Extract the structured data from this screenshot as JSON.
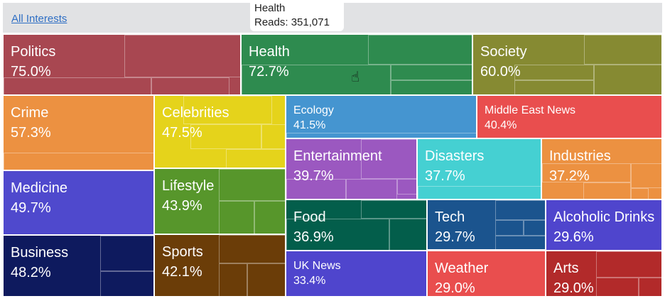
{
  "breadcrumb": {
    "label": "All Interests"
  },
  "tooltip": {
    "title": "Health",
    "reads_label": "Reads:",
    "reads_value": "351,071"
  },
  "tiles": [
    {
      "name": "Politics",
      "pct": "75.0%",
      "color": "#a84751"
    },
    {
      "name": "Health",
      "pct": "72.7%",
      "color": "#2e8b4f"
    },
    {
      "name": "Society",
      "pct": "60.0%",
      "color": "#868a32"
    },
    {
      "name": "Crime",
      "pct": "57.3%",
      "color": "#ec9141"
    },
    {
      "name": "Medicine",
      "pct": "49.7%",
      "color": "#4f49cd"
    },
    {
      "name": "Business",
      "pct": "48.2%",
      "color": "#0e1a5e"
    },
    {
      "name": "Celebrities",
      "pct": "47.5%",
      "color": "#e5d31b"
    },
    {
      "name": "Lifestyle",
      "pct": "43.9%",
      "color": "#57962b"
    },
    {
      "name": "Sports",
      "pct": "42.1%",
      "color": "#6b3d08"
    },
    {
      "name": "Ecology",
      "pct": "41.5%",
      "color": "#4595d0"
    },
    {
      "name": "Middle East News",
      "pct": "40.4%",
      "color": "#e94e4e"
    },
    {
      "name": "Entertainment",
      "pct": "39.7%",
      "color": "#9b58c0"
    },
    {
      "name": "Disasters",
      "pct": "37.7%",
      "color": "#45d0d2"
    },
    {
      "name": "Industries",
      "pct": "37.2%",
      "color": "#ec9141"
    },
    {
      "name": "Food",
      "pct": "36.9%",
      "color": "#035e4b"
    },
    {
      "name": "Tech",
      "pct": "29.7%",
      "color": "#1b548e"
    },
    {
      "name": "Alcoholic Drinks",
      "pct": "29.6%",
      "color": "#4f45cd"
    },
    {
      "name": "UK News",
      "pct": "33.4%",
      "color": "#4f45cd"
    },
    {
      "name": "Weather",
      "pct": "29.0%",
      "color": "#e94e4e"
    },
    {
      "name": "Arts",
      "pct": "29.0%",
      "color": "#b22a2a"
    }
  ]
}
